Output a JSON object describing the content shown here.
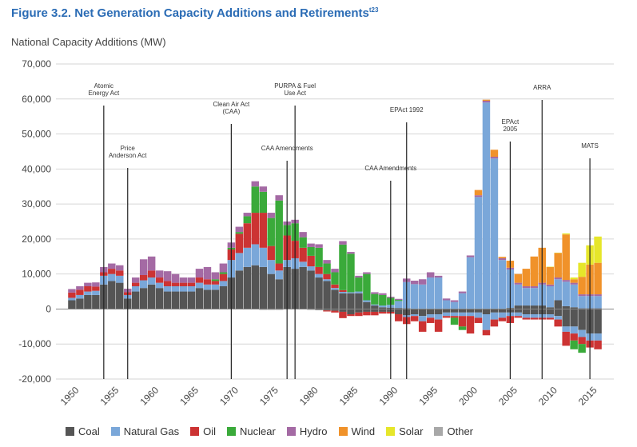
{
  "figure": {
    "title": "Figure 3.2. Net Generation Capacity Additions and Retirements",
    "title_sup": "t23"
  },
  "chart_data": {
    "type": "bar",
    "stacked": true,
    "ylabel": "National Capacity Additions (MW)",
    "xlabel": "",
    "ylim": [
      -20000,
      70000
    ],
    "yticks": [
      -20000,
      -10000,
      0,
      10000,
      20000,
      30000,
      40000,
      50000,
      60000,
      70000
    ],
    "ytick_labels": [
      "-20,000",
      "-10,000",
      "0",
      "10,000",
      "20,000",
      "30,000",
      "40,000",
      "50,000",
      "60,000",
      "70,000"
    ],
    "xticks": [
      1950,
      1955,
      1960,
      1965,
      1970,
      1975,
      1980,
      1985,
      1990,
      1995,
      2000,
      2005,
      2010,
      2015
    ],
    "grid": true,
    "legend_position": "bottom",
    "years": [
      1950,
      1951,
      1952,
      1953,
      1954,
      1955,
      1956,
      1957,
      1958,
      1959,
      1960,
      1961,
      1962,
      1963,
      1964,
      1965,
      1966,
      1967,
      1968,
      1969,
      1970,
      1971,
      1972,
      1973,
      1974,
      1975,
      1976,
      1977,
      1978,
      1979,
      1980,
      1981,
      1982,
      1983,
      1984,
      1985,
      1986,
      1987,
      1988,
      1989,
      1990,
      1991,
      1992,
      1993,
      1994,
      1995,
      1996,
      1997,
      1998,
      1999,
      2000,
      2001,
      2002,
      2003,
      2004,
      2005,
      2006,
      2007,
      2008,
      2009,
      2010,
      2011,
      2012,
      2013,
      2014,
      2015,
      2016
    ],
    "series": [
      {
        "name": "Coal",
        "color": "#555555",
        "pos": [
          2500,
          3000,
          4000,
          4000,
          7000,
          8000,
          7500,
          3000,
          5000,
          6000,
          7000,
          6000,
          5000,
          5000,
          5000,
          5000,
          6000,
          5500,
          5500,
          6500,
          9000,
          11000,
          12000,
          12500,
          12000,
          10000,
          8500,
          12000,
          11500,
          12000,
          11000,
          9000,
          8000,
          5500,
          4500,
          4500,
          4500,
          2000,
          1000,
          500,
          400,
          300,
          200,
          100,
          0,
          0,
          0,
          0,
          0,
          0,
          0,
          0,
          0,
          0,
          0,
          300,
          1000,
          1000,
          1000,
          1000,
          500,
          2500,
          800,
          500,
          200,
          200,
          200
        ],
        "neg": [
          0,
          0,
          0,
          0,
          0,
          0,
          0,
          0,
          0,
          0,
          0,
          0,
          0,
          0,
          0,
          0,
          0,
          0,
          0,
          0,
          0,
          0,
          0,
          0,
          -200,
          -200,
          -200,
          0,
          0,
          0,
          -200,
          -300,
          -400,
          -500,
          -800,
          -1500,
          -1000,
          -800,
          -800,
          -800,
          -800,
          -1500,
          -1800,
          -1500,
          -2000,
          -1500,
          -1500,
          -1000,
          -1000,
          -1000,
          -1000,
          -1000,
          -1500,
          -1000,
          -1000,
          -1000,
          -1000,
          -1500,
          -1500,
          -1500,
          -1500,
          -2000,
          -5000,
          -5000,
          -6000,
          -7000,
          -7000
        ]
      },
      {
        "name": "Natural Gas",
        "color": "#7aa7d9",
        "pos": [
          700,
          1000,
          1000,
          1200,
          2500,
          2000,
          2000,
          1000,
          1500,
          2200,
          2000,
          1500,
          1500,
          1500,
          1500,
          1500,
          1500,
          1500,
          1500,
          1500,
          5000,
          5000,
          5500,
          6000,
          5500,
          4000,
          2500,
          2000,
          3000,
          1500,
          1200,
          1000,
          500,
          500,
          400,
          300,
          500,
          500,
          300,
          500,
          800,
          2000,
          7500,
          7000,
          7000,
          9000,
          9000,
          2500,
          2000,
          4500,
          14800,
          32000,
          59000,
          43000,
          14000,
          11000,
          6000,
          5000,
          5000,
          6000,
          6000,
          6000,
          7000,
          6500,
          3500,
          3500,
          3500
        ],
        "neg": [
          0,
          0,
          0,
          0,
          0,
          0,
          0,
          0,
          0,
          0,
          0,
          0,
          0,
          0,
          0,
          0,
          0,
          0,
          0,
          0,
          0,
          0,
          0,
          0,
          0,
          0,
          0,
          0,
          0,
          0,
          0,
          0,
          0,
          0,
          0,
          0,
          0,
          0,
          0,
          0,
          0,
          0,
          -500,
          -500,
          -1500,
          -1000,
          -1500,
          -1000,
          -1000,
          -1000,
          -1000,
          -1500,
          -4500,
          -2000,
          -1500,
          -1000,
          -1000,
          -1000,
          -1000,
          -1000,
          -1000,
          -1000,
          -1500,
          -2000,
          -2000,
          -2000,
          -2000
        ]
      },
      {
        "name": "Oil",
        "color": "#cc3333",
        "pos": [
          1500,
          1500,
          1500,
          1200,
          1000,
          1500,
          1500,
          800,
          1000,
          1500,
          2000,
          1500,
          1500,
          1000,
          1000,
          1000,
          1500,
          1500,
          1000,
          2000,
          3000,
          5500,
          7000,
          9000,
          10000,
          4000,
          2000,
          7000,
          5000,
          4000,
          3000,
          2000,
          1500,
          1000,
          500,
          0,
          0,
          0,
          0,
          0,
          0,
          0,
          0,
          0,
          0,
          0,
          0,
          0,
          0,
          0,
          0,
          0,
          0,
          0,
          0,
          0,
          0,
          0,
          0,
          0,
          0,
          0,
          0,
          0,
          0,
          0,
          0
        ],
        "neg": [
          0,
          0,
          0,
          0,
          0,
          0,
          0,
          0,
          0,
          0,
          0,
          0,
          0,
          0,
          0,
          0,
          0,
          0,
          0,
          0,
          0,
          0,
          0,
          0,
          0,
          0,
          0,
          0,
          0,
          0,
          0,
          0,
          -300,
          -500,
          -1800,
          -500,
          -1000,
          -1000,
          -1000,
          -500,
          -500,
          -2000,
          -2000,
          -1500,
          -3000,
          -1500,
          -3500,
          -500,
          -500,
          -3000,
          -5000,
          -1500,
          -1500,
          -2000,
          -1000,
          -2000,
          -500,
          -500,
          -500,
          -500,
          -500,
          -2000,
          -4000,
          -2000,
          -2000,
          -2000,
          -2500
        ]
      },
      {
        "name": "Nuclear",
        "color": "#3aaa3a",
        "pos": [
          0,
          0,
          0,
          0,
          0,
          0,
          0,
          0,
          0,
          0,
          0,
          0,
          0,
          0,
          0,
          0,
          0,
          0,
          500,
          500,
          500,
          500,
          2000,
          7500,
          6000,
          8000,
          18000,
          3000,
          5000,
          3000,
          2500,
          5500,
          3000,
          3500,
          13000,
          11000,
          4000,
          7500,
          3000,
          3000,
          2000,
          300,
          0,
          0,
          0,
          0,
          0,
          0,
          0,
          0,
          0,
          0,
          0,
          0,
          0,
          0,
          0,
          0,
          0,
          0,
          0,
          0,
          0,
          0,
          0,
          0,
          0
        ],
        "neg": [
          0,
          0,
          0,
          0,
          0,
          0,
          0,
          0,
          0,
          0,
          0,
          0,
          0,
          0,
          0,
          0,
          0,
          0,
          0,
          0,
          0,
          0,
          0,
          0,
          0,
          0,
          0,
          0,
          0,
          0,
          0,
          0,
          0,
          0,
          0,
          0,
          0,
          0,
          0,
          0,
          0,
          0,
          0,
          0,
          0,
          0,
          0,
          0,
          -2000,
          -1000,
          0,
          0,
          0,
          0,
          0,
          0,
          0,
          0,
          0,
          0,
          0,
          0,
          0,
          -2500,
          -2500,
          0,
          0
        ]
      },
      {
        "name": "Hydro",
        "color": "#a46aa4",
        "pos": [
          1000,
          1000,
          1000,
          1200,
          1500,
          1500,
          1500,
          1000,
          1500,
          4500,
          4000,
          2000,
          2800,
          2500,
          1500,
          1500,
          2500,
          3500,
          2000,
          2500,
          1500,
          1500,
          1000,
          1500,
          1500,
          1500,
          1500,
          1000,
          1000,
          1500,
          1000,
          1000,
          1000,
          1000,
          1000,
          500,
          500,
          500,
          500,
          500,
          300,
          300,
          1000,
          1000,
          1500,
          1500,
          500,
          500,
          500,
          500,
          500,
          500,
          500,
          500,
          500,
          500,
          500,
          500,
          500,
          500,
          500,
          500,
          500,
          500,
          500,
          500,
          500
        ],
        "neg": [
          0,
          0,
          0,
          0,
          0,
          0,
          0,
          0,
          0,
          0,
          0,
          0,
          0,
          0,
          0,
          0,
          0,
          0,
          0,
          0,
          0,
          0,
          0,
          0,
          0,
          0,
          0,
          0,
          0,
          0,
          0,
          0,
          0,
          0,
          0,
          0,
          0,
          0,
          0,
          0,
          0,
          0,
          0,
          0,
          0,
          0,
          0,
          0,
          0,
          0,
          0,
          0,
          0,
          0,
          0,
          0,
          0,
          0,
          0,
          0,
          0,
          0,
          0,
          0,
          0,
          0,
          0
        ]
      },
      {
        "name": "Wind",
        "color": "#f0922a",
        "pos": [
          0,
          0,
          0,
          0,
          0,
          0,
          0,
          0,
          0,
          0,
          0,
          0,
          0,
          0,
          0,
          0,
          0,
          0,
          0,
          0,
          0,
          0,
          0,
          0,
          0,
          0,
          0,
          0,
          0,
          0,
          0,
          0,
          0,
          0,
          0,
          0,
          0,
          0,
          0,
          0,
          0,
          0,
          0,
          0,
          0,
          0,
          0,
          0,
          0,
          0,
          0,
          1500,
          300,
          2000,
          400,
          2000,
          2500,
          5000,
          8500,
          10000,
          5000,
          7000,
          13000,
          1000,
          5000,
          8500,
          9000
        ],
        "neg": [
          0,
          0,
          0,
          0,
          0,
          0,
          0,
          0,
          0,
          0,
          0,
          0,
          0,
          0,
          0,
          0,
          0,
          0,
          0,
          0,
          0,
          0,
          0,
          0,
          0,
          0,
          0,
          0,
          0,
          0,
          0,
          0,
          0,
          0,
          0,
          0,
          0,
          0,
          0,
          0,
          0,
          0,
          0,
          0,
          0,
          0,
          0,
          0,
          0,
          0,
          0,
          0,
          0,
          0,
          0,
          0,
          0,
          0,
          0,
          0,
          0,
          0,
          0,
          0,
          0,
          0,
          0
        ]
      },
      {
        "name": "Solar",
        "color": "#e6e62a",
        "pos": [
          0,
          0,
          0,
          0,
          0,
          0,
          0,
          0,
          0,
          0,
          0,
          0,
          0,
          0,
          0,
          0,
          0,
          0,
          0,
          0,
          0,
          0,
          0,
          0,
          0,
          0,
          0,
          0,
          0,
          0,
          0,
          0,
          0,
          0,
          0,
          0,
          0,
          0,
          0,
          0,
          0,
          0,
          0,
          0,
          0,
          0,
          0,
          0,
          0,
          0,
          0,
          0,
          0,
          0,
          0,
          0,
          0,
          0,
          0,
          0,
          100,
          100,
          300,
          500,
          4000,
          5500,
          7500
        ],
        "neg": [
          0,
          0,
          0,
          0,
          0,
          0,
          0,
          0,
          0,
          0,
          0,
          0,
          0,
          0,
          0,
          0,
          0,
          0,
          0,
          0,
          0,
          0,
          0,
          0,
          0,
          0,
          0,
          0,
          0,
          0,
          0,
          0,
          0,
          0,
          0,
          0,
          0,
          0,
          0,
          0,
          0,
          0,
          0,
          0,
          0,
          0,
          0,
          0,
          0,
          0,
          0,
          0,
          0,
          0,
          0,
          0,
          0,
          0,
          0,
          0,
          0,
          0,
          0,
          0,
          0,
          0,
          0
        ]
      },
      {
        "name": "Other",
        "color": "#a8a8a8",
        "pos": [
          0,
          0,
          0,
          0,
          0,
          0,
          0,
          0,
          0,
          0,
          0,
          0,
          0,
          0,
          0,
          0,
          0,
          0,
          0,
          0,
          0,
          0,
          0,
          0,
          0,
          0,
          0,
          0,
          0,
          0,
          0,
          0,
          0,
          0,
          0,
          0,
          0,
          0,
          0,
          0,
          0,
          0,
          0,
          0,
          0,
          0,
          0,
          0,
          0,
          0,
          0,
          0,
          0,
          0,
          0,
          0,
          0,
          0,
          0,
          0,
          0,
          0,
          0,
          0,
          0,
          0,
          0
        ],
        "neg": [
          0,
          0,
          0,
          0,
          0,
          0,
          0,
          0,
          0,
          0,
          0,
          0,
          0,
          0,
          0,
          0,
          0,
          0,
          0,
          0,
          0,
          0,
          0,
          0,
          0,
          0,
          0,
          0,
          0,
          0,
          0,
          0,
          0,
          0,
          0,
          0,
          0,
          0,
          0,
          0,
          0,
          0,
          0,
          0,
          0,
          0,
          0,
          0,
          0,
          0,
          0,
          0,
          0,
          0,
          0,
          0,
          0,
          0,
          0,
          0,
          0,
          0,
          0,
          0,
          0,
          0,
          0
        ]
      }
    ],
    "annotations": [
      {
        "lines": [
          "Atomic",
          "Energy Act"
        ],
        "year": 1954
      },
      {
        "lines": [
          "Price",
          "Anderson Act"
        ],
        "year": 1957
      },
      {
        "lines": [
          "Clean Air Act",
          "(CAA)"
        ],
        "year": 1970
      },
      {
        "lines": [
          "CAA Amendments"
        ],
        "year": 1977
      },
      {
        "lines": [
          "PURPA & Fuel",
          "Use Act"
        ],
        "year": 1978
      },
      {
        "lines": [
          "CAA Amendments"
        ],
        "year": 1990
      },
      {
        "lines": [
          "EPAct 1992"
        ],
        "year": 1992
      },
      {
        "lines": [
          "EPAct",
          "2005"
        ],
        "year": 2005
      },
      {
        "lines": [
          "ARRA"
        ],
        "year": 2009
      },
      {
        "lines": [
          "MATS"
        ],
        "year": 2015
      }
    ]
  }
}
